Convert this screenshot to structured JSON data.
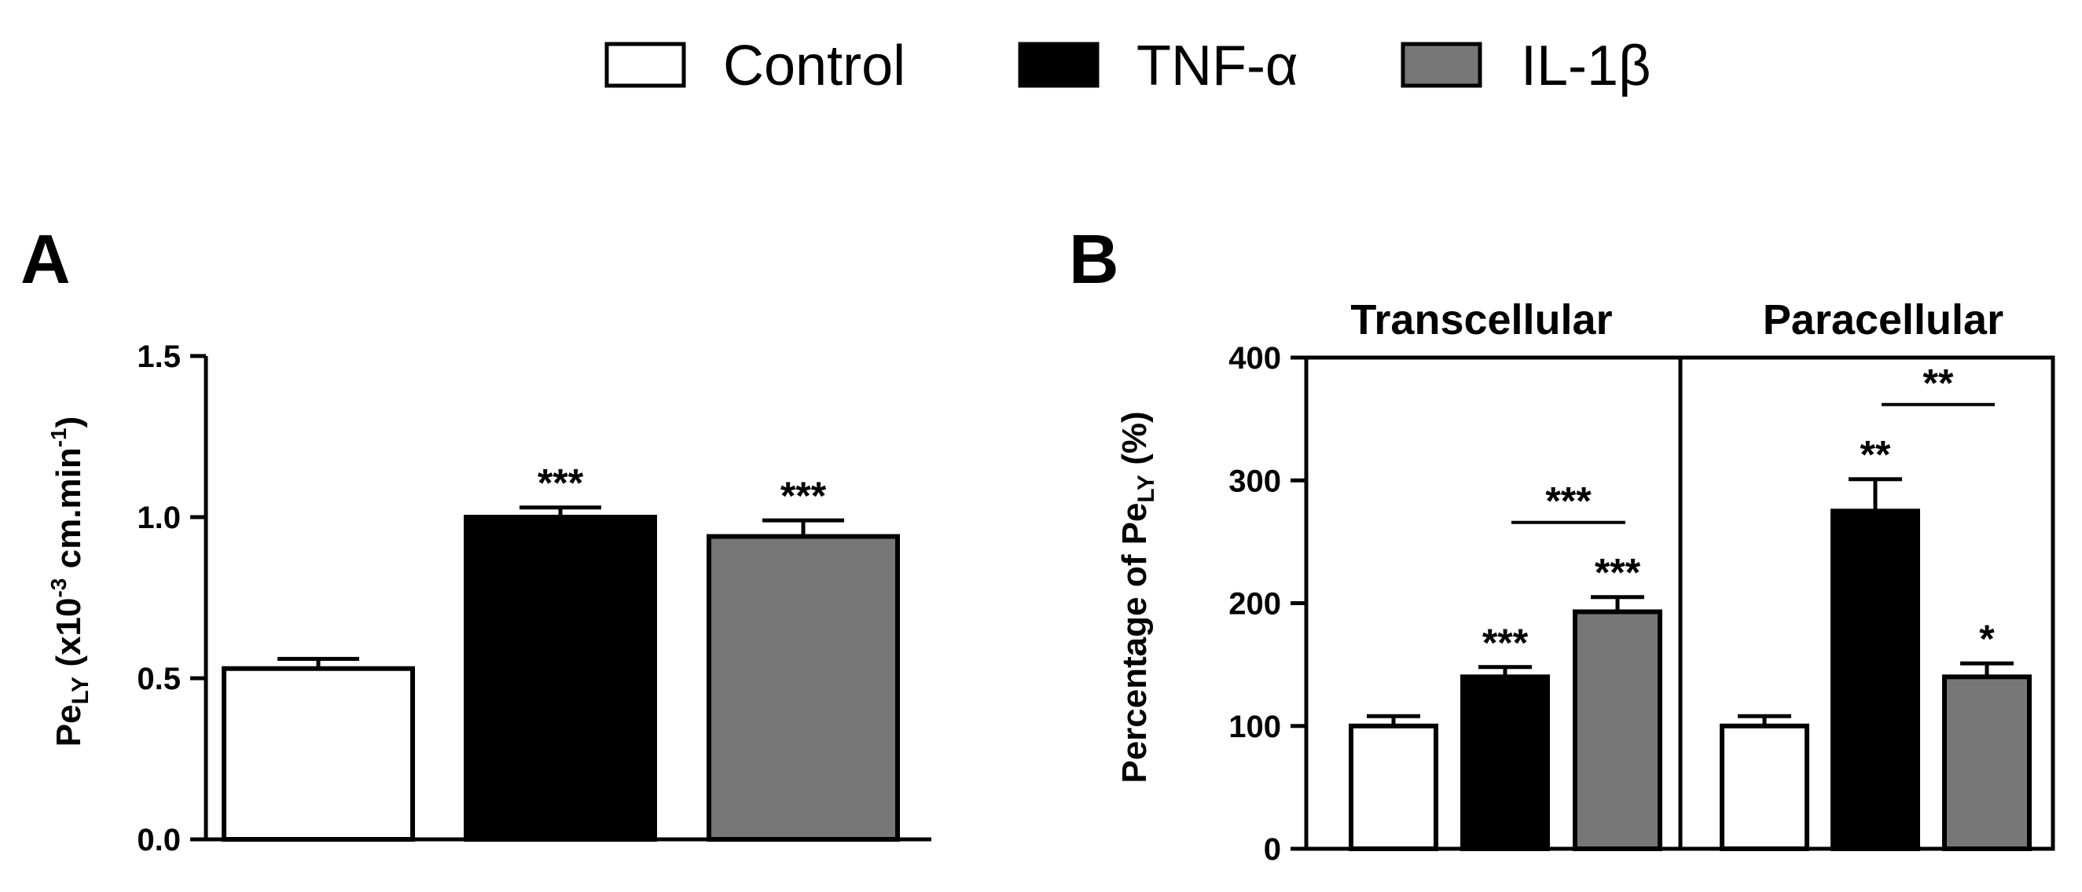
{
  "colors": {
    "Control": "#ffffff",
    "TNF-α": "#000000",
    "IL-1β": "#777777"
  },
  "chart_data": [
    {
      "type": "bar",
      "panel": "A",
      "legend": [
        "Control",
        "TNF-α",
        "IL-1β"
      ],
      "categories": [
        "Control",
        "TNF-α",
        "IL-1β"
      ],
      "values": [
        0.53,
        1.0,
        0.94
      ],
      "errors": [
        0.03,
        0.03,
        0.05
      ],
      "significance": [
        "",
        "***",
        "***"
      ],
      "ylim": [
        0,
        1.5
      ],
      "yticks": [
        "0.0",
        "0.5",
        "1.0",
        "1.5"
      ],
      "ylabel": {
        "main": "Pe",
        "sub": "LY",
        "rest": " (x10",
        "exp": "-3",
        "rest2": " cm.min",
        "exp2": "-1",
        "close": ")"
      }
    },
    {
      "type": "bar",
      "panel": "B",
      "groups": [
        {
          "title": "Transcellular",
          "values": [
            100,
            140,
            193
          ],
          "errors": [
            8,
            8,
            12
          ],
          "significance": [
            "",
            "***",
            "***"
          ],
          "comparison": {
            "from": 1,
            "to": 2,
            "label": "***"
          }
        },
        {
          "title": "Paracellular",
          "values": [
            100,
            275,
            140
          ],
          "errors": [
            8,
            26,
            11
          ],
          "significance": [
            "",
            "**",
            "*"
          ],
          "comparison": {
            "from": 1,
            "to": 2,
            "label": "**"
          }
        }
      ],
      "categories": [
        "Control",
        "TNF-α",
        "IL-1β"
      ],
      "ylim": [
        0,
        400
      ],
      "yticks": [
        "0",
        "100",
        "200",
        "300",
        "400"
      ],
      "ylabel": {
        "main": "Percentage of Pe",
        "sub": "LY",
        "rest": " (%)"
      }
    }
  ]
}
